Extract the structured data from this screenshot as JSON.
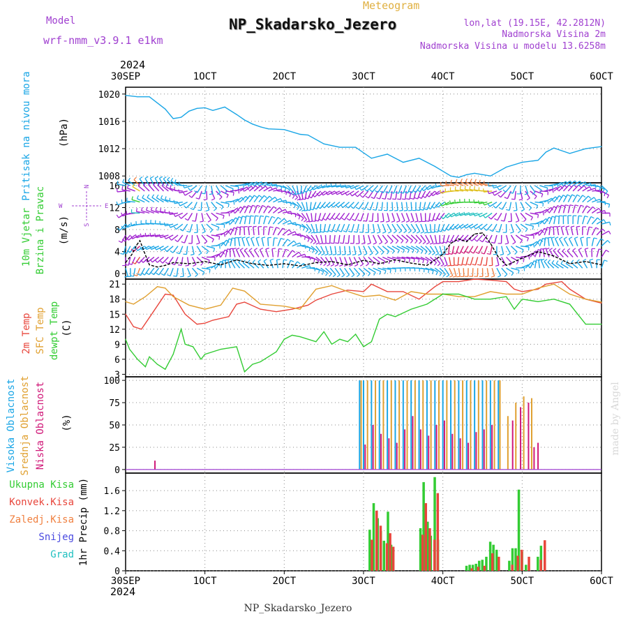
{
  "header": {
    "model_label": "Model",
    "model_name": "wrf-nmm_v3.9.1  e1km",
    "meteogram_label": "Meteogram",
    "station_title": "NP_Skadarsko_Jezero",
    "lonlat": "lon,lat (19.15E, 42.2812N)",
    "altitude": "Nadmorska Visina 2m",
    "model_altitude": "Nadmorska Visina u modelu 13.6258m",
    "footer_title": "NP_Skadarsko_Jezero",
    "credit": "made by Angel"
  },
  "colors": {
    "pressure": "#1aa6e6",
    "wind_speed": "#000000",
    "temp2m": "#e8463c",
    "sfc_temp": "#e0a030",
    "dewpt": "#33cc33",
    "cloud_high": "#1aa6e6",
    "cloud_mid": "#e0a030",
    "cloud_low": "#d01878",
    "precip_total": "#33cc33",
    "precip_conv": "#e8463c",
    "precip_frz": "#f08040",
    "snow": "#4a4ae0",
    "grad": "#20c0c0",
    "title_purple": "#a040d0"
  },
  "chart_data": [
    {
      "type": "line",
      "name": "pressure-panel",
      "ylabel_title": "Pritisak na nivou mora",
      "ylabel_unit": "(hPa)",
      "ylim": [
        1007,
        1021
      ],
      "yticks": [
        "1008",
        "1012",
        "1016",
        "1020"
      ],
      "xlim": [
        0,
        6
      ],
      "grid": true,
      "series": [
        {
          "x": [
            0,
            0.15,
            0.3,
            0.5,
            0.6,
            0.7,
            0.8,
            0.9,
            1.0,
            1.1,
            1.25,
            1.4,
            1.5,
            1.6,
            1.7,
            1.8,
            2.0,
            2.2,
            2.3,
            2.5,
            2.7,
            2.9,
            3.1,
            3.3,
            3.5,
            3.7,
            3.9,
            4.1,
            4.2,
            4.3,
            4.4,
            4.6,
            4.8,
            5.0,
            5.2,
            5.3,
            5.4,
            5.6,
            5.8,
            6.0
          ],
          "y": [
            1019.8,
            1019.6,
            1019.6,
            1017.8,
            1016.4,
            1016.6,
            1017.5,
            1017.9,
            1018.0,
            1017.6,
            1018.1,
            1017.0,
            1016.2,
            1015.6,
            1015.2,
            1014.9,
            1014.8,
            1014.1,
            1014.0,
            1012.7,
            1012.2,
            1012.2,
            1010.6,
            1011.2,
            1010.0,
            1010.6,
            1009.4,
            1008.0,
            1007.8,
            1008.2,
            1008.4,
            1008.0,
            1009.3,
            1010.0,
            1010.3,
            1011.5,
            1012.1,
            1011.3,
            1012.0,
            1012.3
          ]
        }
      ]
    },
    {
      "type": "line",
      "name": "wind-panel",
      "ylabel_title": "10m Vjetar",
      "ylabel_title2": "Brzina i Pravac",
      "ylabel_unit": "(m/s)",
      "compass": {
        "n": "N",
        "w": "W",
        "e": "E",
        "s": "S"
      },
      "ylim": [
        -1,
        16.5
      ],
      "yticks": [
        "0",
        "4",
        "8",
        "12",
        "16"
      ],
      "xlim": [
        0,
        6
      ],
      "grid": true,
      "series": [
        {
          "name": "wind-speed",
          "x": [
            0,
            0.08,
            0.14,
            0.18,
            0.22,
            0.26,
            0.3,
            0.4,
            0.5,
            0.6,
            0.8,
            1.0,
            1.2,
            1.4,
            1.6,
            1.8,
            2.0,
            2.2,
            2.4,
            2.6,
            2.8,
            3.0,
            3.2,
            3.4,
            3.6,
            3.8,
            4.0,
            4.1,
            4.2,
            4.3,
            4.4,
            4.5,
            4.6,
            4.7,
            4.8,
            5.0,
            5.2,
            5.4,
            5.6,
            5.8,
            6.0
          ],
          "y": [
            2,
            3.5,
            5.2,
            6.0,
            4.5,
            3.0,
            1.6,
            1.2,
            1.5,
            2.0,
            1.8,
            2.2,
            1.6,
            2.5,
            1.8,
            1.5,
            1.8,
            1.4,
            2.0,
            2.2,
            1.6,
            2.4,
            1.8,
            2.5,
            1.9,
            1.5,
            3.5,
            5.5,
            6.3,
            5.8,
            7.2,
            7.4,
            5.5,
            3.0,
            1.5,
            2.8,
            4.0,
            3.2,
            1.8,
            2.2,
            1.6
          ]
        }
      ]
    },
    {
      "type": "line",
      "name": "temperature-panel",
      "ylabel_title1": "2m Temp",
      "ylabel_title2": "SFC Temp",
      "ylabel_title3": "dewpt Temp",
      "ylabel_unit": "(C)",
      "ylim": [
        2.5,
        22
      ],
      "yticks": [
        "3",
        "6",
        "9",
        "12",
        "15",
        "18",
        "21"
      ],
      "xlim": [
        0,
        6
      ],
      "grid": true,
      "series": [
        {
          "name": "2m Temp",
          "x": [
            0,
            0.1,
            0.2,
            0.35,
            0.5,
            0.6,
            0.75,
            0.9,
            1.0,
            1.1,
            1.3,
            1.4,
            1.5,
            1.7,
            1.9,
            2.1,
            2.3,
            2.4,
            2.6,
            2.8,
            3.0,
            3.1,
            3.3,
            3.5,
            3.7,
            3.9,
            4.0,
            4.2,
            4.4,
            4.6,
            4.8,
            4.9,
            5.0,
            5.2,
            5.3,
            5.5,
            5.6,
            5.8,
            6.0
          ],
          "y": [
            15,
            12.5,
            12,
            15.5,
            19,
            18.8,
            15,
            13,
            13.2,
            13.8,
            14.5,
            17,
            17.4,
            16,
            15.5,
            16,
            16.8,
            17.8,
            19,
            19.8,
            19.5,
            21,
            19.5,
            19.5,
            18,
            20.5,
            21.5,
            21.5,
            22,
            21.8,
            21.5,
            20,
            19.5,
            20,
            21,
            21.5,
            20,
            18,
            17.2
          ]
        },
        {
          "name": "SFC Temp",
          "x": [
            0,
            0.1,
            0.25,
            0.4,
            0.5,
            0.6,
            0.8,
            1.0,
            1.2,
            1.35,
            1.5,
            1.7,
            2.0,
            2.2,
            2.4,
            2.6,
            2.8,
            3.0,
            3.2,
            3.4,
            3.6,
            3.8,
            4.0,
            4.2,
            4.4,
            4.6,
            4.8,
            5.0,
            5.2,
            5.4,
            5.6,
            5.8,
            6.0
          ],
          "y": [
            17.5,
            17,
            18.5,
            20.5,
            20.2,
            18.5,
            16.8,
            16,
            16.8,
            20.2,
            19.6,
            17,
            16.6,
            16,
            20,
            20.7,
            19.5,
            18.5,
            18.8,
            17.8,
            19.5,
            19,
            19,
            18.5,
            18.5,
            19.5,
            19,
            19,
            20.2,
            21,
            19,
            18,
            17.4
          ]
        },
        {
          "name": "dewpt Temp",
          "x": [
            0,
            0.05,
            0.15,
            0.25,
            0.3,
            0.4,
            0.5,
            0.6,
            0.7,
            0.75,
            0.85,
            0.95,
            1.0,
            1.2,
            1.4,
            1.45,
            1.5,
            1.6,
            1.7,
            1.8,
            1.9,
            2.0,
            2.1,
            2.2,
            2.4,
            2.5,
            2.6,
            2.7,
            2.8,
            2.9,
            3.0,
            3.1,
            3.2,
            3.3,
            3.4,
            3.6,
            3.8,
            4.0,
            4.2,
            4.4,
            4.6,
            4.8,
            4.9,
            5.0,
            5.2,
            5.4,
            5.6,
            5.8,
            6.0
          ],
          "y": [
            10,
            8,
            6,
            4.5,
            6.5,
            5,
            4,
            7,
            12,
            9,
            8.5,
            6,
            7,
            8,
            8.5,
            6,
            3.5,
            5,
            5.5,
            6.5,
            7.5,
            10,
            10.8,
            10.5,
            9.5,
            11.5,
            9,
            10,
            9.5,
            11,
            8.5,
            9.5,
            14,
            15,
            14.5,
            16,
            17,
            19,
            19,
            18,
            18,
            18.5,
            16,
            18,
            17.5,
            18,
            17,
            13,
            13
          ]
        }
      ]
    },
    {
      "type": "bar",
      "name": "cloud-panel",
      "ylabel_title1": "Visoka Oblacnost",
      "ylabel_title2": "Srednja Oblacnost",
      "ylabel_title3": "Niska Oblacnost",
      "ylabel_unit": "(%)",
      "ylim": [
        -4,
        104
      ],
      "yticks": [
        "0",
        "25",
        "50",
        "75",
        "100"
      ],
      "xlim": [
        0,
        6
      ],
      "grid": true,
      "series": [
        {
          "name": "high",
          "x": [
            2.95,
            3.0,
            3.1,
            3.2,
            3.3,
            3.4,
            3.5,
            3.6,
            3.7,
            3.8,
            3.9,
            4.0,
            4.1,
            4.2,
            4.3,
            4.4,
            4.5,
            4.6,
            4.7
          ],
          "values": [
            100,
            100,
            100,
            100,
            100,
            100,
            100,
            100,
            100,
            100,
            100,
            100,
            100,
            100,
            100,
            100,
            100,
            100,
            100
          ]
        },
        {
          "name": "mid",
          "x": [
            2.97,
            3.05,
            3.15,
            3.25,
            3.35,
            3.45,
            3.55,
            3.65,
            3.75,
            3.85,
            3.95,
            4.05,
            4.15,
            4.25,
            4.35,
            4.45,
            4.55,
            4.65,
            4.72,
            4.82,
            4.92,
            5.02,
            5.12
          ],
          "values": [
            100,
            100,
            100,
            100,
            100,
            100,
            100,
            100,
            100,
            100,
            100,
            100,
            100,
            100,
            100,
            100,
            100,
            100,
            100,
            60,
            75,
            82,
            80
          ]
        },
        {
          "name": "low",
          "x": [
            0.37,
            3.02,
            3.12,
            3.22,
            3.32,
            3.42,
            3.52,
            3.62,
            3.72,
            3.82,
            3.92,
            4.02,
            4.12,
            4.22,
            4.32,
            4.42,
            4.52,
            4.62,
            4.88,
            4.98,
            5.08,
            5.15,
            5.2
          ],
          "values": [
            10,
            28,
            50,
            40,
            35,
            30,
            45,
            60,
            45,
            38,
            50,
            55,
            40,
            35,
            30,
            42,
            45,
            50,
            55,
            70,
            75,
            25,
            30
          ]
        }
      ]
    },
    {
      "type": "bar",
      "name": "precip-panel",
      "ylabel_unit": "1hr Precip (mm)",
      "legend": [
        "Ukupna  Kisa",
        "Konvek.Kisa",
        "Zaledj.Kisa",
        "Snijeg",
        "Grad"
      ],
      "ylim": [
        0,
        1.95
      ],
      "yticks": [
        "0",
        "0.4",
        "0.8",
        "1.2",
        "1.6"
      ],
      "xlim": [
        0,
        6
      ],
      "xticks": [
        "30SEP",
        "1OCT",
        "2OCT",
        "3OCT",
        "4OCT",
        "5OCT",
        "6OCT"
      ],
      "year": "2024",
      "grid": true,
      "series": [
        {
          "name": "Ukupna Kisa",
          "x": [
            3.08,
            3.13,
            3.18,
            3.22,
            3.26,
            3.31,
            3.35,
            3.39,
            3.72,
            3.76,
            3.81,
            3.85,
            3.9,
            3.94,
            4.3,
            4.34,
            4.38,
            4.42,
            4.46,
            4.5,
            4.55,
            4.6,
            4.64,
            4.68,
            4.84,
            4.88,
            4.92,
            4.96,
            5.0,
            5.05,
            5.2,
            5.24
          ],
          "values": [
            0.82,
            1.35,
            1.05,
            0.8,
            0.6,
            1.18,
            0.52,
            0.0,
            0.85,
            1.77,
            0.98,
            0.7,
            1.87,
            0.62,
            0.1,
            0.12,
            0.12,
            0.14,
            0.2,
            0.22,
            0.28,
            0.58,
            0.52,
            0.42,
            0.2,
            0.45,
            0.45,
            1.62,
            0.38,
            0.12,
            0.28,
            0.5
          ]
        },
        {
          "name": "Konvek.Kisa",
          "x": [
            3.09,
            3.15,
            3.2,
            3.28,
            3.32,
            3.36,
            3.73,
            3.77,
            3.82,
            3.88,
            3.92,
            4.35,
            4.43,
            4.51,
            4.61,
            4.69,
            4.86,
            4.93,
            4.98,
            5.07,
            5.22,
            5.27
          ],
          "values": [
            0.62,
            1.2,
            0.9,
            0.55,
            0.75,
            0.48,
            0.72,
            1.35,
            0.85,
            0.62,
            1.55,
            0.05,
            0.08,
            0.1,
            0.35,
            0.28,
            0.12,
            0.3,
            0.42,
            0.28,
            0.22,
            0.61
          ]
        }
      ]
    }
  ]
}
